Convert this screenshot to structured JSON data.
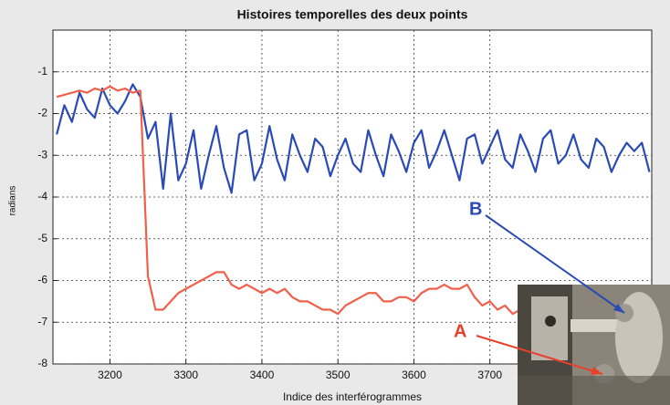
{
  "chart_data": {
    "type": "line",
    "title": "Histoires temporelles des deux points",
    "x_label": "Indice des interférogrammes",
    "y_label": "radians",
    "x": [
      3130,
      3140,
      3150,
      3160,
      3170,
      3180,
      3190,
      3200,
      3210,
      3220,
      3230,
      3240,
      3250,
      3260,
      3270,
      3280,
      3290,
      3300,
      3310,
      3320,
      3330,
      3340,
      3350,
      3360,
      3370,
      3380,
      3390,
      3400,
      3410,
      3420,
      3430,
      3440,
      3450,
      3460,
      3470,
      3480,
      3490,
      3500,
      3510,
      3520,
      3530,
      3540,
      3550,
      3560,
      3570,
      3580,
      3590,
      3600,
      3610,
      3620,
      3630,
      3640,
      3650,
      3660,
      3670,
      3680,
      3690,
      3700,
      3710,
      3720,
      3730,
      3740,
      3750,
      3760,
      3770,
      3780,
      3790,
      3800,
      3810,
      3820,
      3830,
      3840,
      3850,
      3860,
      3870,
      3880,
      3890,
      3900,
      3910
    ],
    "series": [
      {
        "name": "B",
        "color": "#2a4bb5",
        "values": [
          -2.5,
          -1.8,
          -2.2,
          -1.5,
          -1.9,
          -2.1,
          -1.4,
          -1.8,
          -2.0,
          -1.7,
          -1.3,
          -1.6,
          -2.6,
          -2.2,
          -3.8,
          -2.0,
          -3.6,
          -3.2,
          -2.4,
          -3.8,
          -3.0,
          -2.3,
          -3.3,
          -3.9,
          -2.5,
          -2.4,
          -3.6,
          -3.2,
          -2.3,
          -3.1,
          -3.6,
          -2.5,
          -3.0,
          -3.4,
          -2.6,
          -2.8,
          -3.5,
          -3.0,
          -2.6,
          -3.2,
          -3.4,
          -2.4,
          -3.0,
          -3.5,
          -2.5,
          -2.9,
          -3.4,
          -2.7,
          -2.4,
          -3.3,
          -2.9,
          -2.4,
          -3.0,
          -3.6,
          -2.6,
          -2.5,
          -3.2,
          -2.8,
          -2.4,
          -3.1,
          -3.3,
          -2.5,
          -2.9,
          -3.4,
          -2.6,
          -2.4,
          -3.2,
          -3.0,
          -2.5,
          -3.1,
          -3.3,
          -2.6,
          -2.8,
          -3.4,
          -3.0,
          -2.7,
          -2.9,
          -2.7,
          -3.4
        ]
      },
      {
        "name": "A",
        "color": "#f0604a",
        "values": [
          -1.6,
          -1.55,
          -1.5,
          -1.45,
          -1.5,
          -1.4,
          -1.45,
          -1.35,
          -1.45,
          -1.4,
          -1.5,
          -1.45,
          -5.9,
          -6.7,
          -6.7,
          -6.5,
          -6.3,
          -6.2,
          -6.1,
          -6.0,
          -5.9,
          -5.8,
          -5.8,
          -6.1,
          -6.2,
          -6.1,
          -6.2,
          -6.3,
          -6.2,
          -6.3,
          -6.2,
          -6.4,
          -6.5,
          -6.5,
          -6.6,
          -6.7,
          -6.7,
          -6.8,
          -6.6,
          -6.5,
          -6.4,
          -6.3,
          -6.3,
          -6.5,
          -6.5,
          -6.4,
          -6.4,
          -6.5,
          -6.3,
          -6.2,
          -6.2,
          -6.1,
          -6.2,
          -6.2,
          -6.1,
          -6.4,
          -6.6,
          -6.5,
          -6.7,
          -6.6,
          -6.8,
          -6.7,
          -6.6,
          -6.8,
          -6.6,
          null,
          null,
          null,
          null,
          null,
          null,
          null,
          null,
          null,
          null,
          null,
          null,
          null,
          null
        ]
      }
    ],
    "xlim": [
      3125,
      3913
    ],
    "ylim": [
      -8,
      0
    ],
    "xticks": [
      3200,
      3300,
      3400,
      3500,
      3600,
      3700
    ],
    "yticks": [
      -1,
      -2,
      -3,
      -4,
      -5,
      -6,
      -7,
      -8
    ],
    "grid": true
  }
}
